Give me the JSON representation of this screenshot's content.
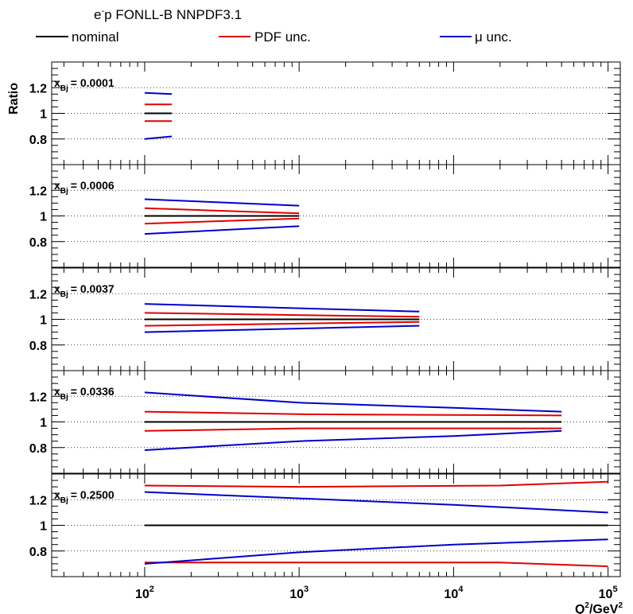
{
  "header": {
    "title_main": "e",
    "title_sup": "-",
    "title_rest": "p FONLL-B NNPDF3.1"
  },
  "legend": {
    "placement": "top",
    "items": [
      {
        "label": "nominal",
        "color": "#000000"
      },
      {
        "label": "PDF unc.",
        "color": "#e00000"
      },
      {
        "label": "μ unc.",
        "color": "#0000cc"
      }
    ]
  },
  "axes": {
    "ylabel": "Ratio",
    "xlabel_main": "Q",
    "xlabel_sup": "2",
    "xlabel_mid": "/GeV",
    "xlabel_sup2": "2",
    "xscale": "log",
    "xlim": [
      25,
      120000
    ],
    "xticks": [
      {
        "base": "10",
        "exp": "2",
        "value": 100
      },
      {
        "base": "10",
        "exp": "3",
        "value": 1000
      },
      {
        "base": "10",
        "exp": "4",
        "value": 10000
      },
      {
        "base": "10",
        "exp": "5",
        "value": 100000
      }
    ],
    "ylim": [
      0.6,
      1.4
    ],
    "yticks": [
      {
        "label": "0.8",
        "value": 0.8
      },
      {
        "label": "1",
        "value": 1.0
      },
      {
        "label": "1.2",
        "value": 1.2
      }
    ],
    "grid": "horizontal dotted at 0.8, 1.0, 1.2"
  },
  "chart_data": {
    "type": "line",
    "panels": [
      {
        "label_x": "x",
        "label_sub": "Bj",
        "label_value": "= 0.0001",
        "series": [
          {
            "name": "nominal",
            "color": "#000000",
            "x": [
              100,
              150
            ],
            "y": [
              1.0,
              1.0
            ]
          },
          {
            "name": "PDF unc.",
            "color": "#e00000",
            "x": [
              100,
              150
            ],
            "y": [
              1.07,
              1.07
            ]
          },
          {
            "name": "PDF unc.",
            "color": "#e00000",
            "x": [
              100,
              150
            ],
            "y": [
              0.94,
              0.94
            ]
          },
          {
            "name": "μ unc.",
            "color": "#0000cc",
            "x": [
              100,
              150
            ],
            "y": [
              1.16,
              1.15
            ]
          },
          {
            "name": "μ unc.",
            "color": "#0000cc",
            "x": [
              100,
              150
            ],
            "y": [
              0.8,
              0.82
            ]
          }
        ]
      },
      {
        "label_x": "x",
        "label_sub": "Bj",
        "label_value": "= 0.0006",
        "series": [
          {
            "name": "nominal",
            "color": "#000000",
            "x": [
              100,
              1000
            ],
            "y": [
              1.0,
              1.0
            ]
          },
          {
            "name": "PDF unc.",
            "color": "#e00000",
            "x": [
              100,
              1000
            ],
            "y": [
              1.06,
              1.02
            ]
          },
          {
            "name": "PDF unc.",
            "color": "#e00000",
            "x": [
              100,
              1000
            ],
            "y": [
              0.94,
              0.98
            ]
          },
          {
            "name": "μ unc.",
            "color": "#0000cc",
            "x": [
              100,
              1000
            ],
            "y": [
              1.13,
              1.08
            ]
          },
          {
            "name": "μ unc.",
            "color": "#0000cc",
            "x": [
              100,
              1000
            ],
            "y": [
              0.86,
              0.92
            ]
          }
        ]
      },
      {
        "label_x": "x",
        "label_sub": "Bj",
        "label_value": "= 0.0037",
        "series": [
          {
            "name": "nominal",
            "color": "#000000",
            "x": [
              100,
              6000
            ],
            "y": [
              1.0,
              1.0
            ]
          },
          {
            "name": "PDF unc.",
            "color": "#e00000",
            "x": [
              100,
              6000
            ],
            "y": [
              1.05,
              1.02
            ]
          },
          {
            "name": "PDF unc.",
            "color": "#e00000",
            "x": [
              100,
              6000
            ],
            "y": [
              0.95,
              0.98
            ]
          },
          {
            "name": "μ unc.",
            "color": "#0000cc",
            "x": [
              100,
              6000
            ],
            "y": [
              1.12,
              1.06
            ]
          },
          {
            "name": "μ unc.",
            "color": "#0000cc",
            "x": [
              100,
              6000
            ],
            "y": [
              0.9,
              0.95
            ]
          }
        ]
      },
      {
        "label_x": "x",
        "label_sub": "Bj",
        "label_value": "= 0.0336",
        "series": [
          {
            "name": "nominal",
            "color": "#000000",
            "x": [
              100,
              50000
            ],
            "y": [
              1.0,
              1.0
            ]
          },
          {
            "name": "PDF unc.",
            "color": "#e00000",
            "x": [
              100,
              1000,
              50000
            ],
            "y": [
              1.08,
              1.06,
              1.05
            ]
          },
          {
            "name": "PDF unc.",
            "color": "#e00000",
            "x": [
              100,
              1000,
              50000
            ],
            "y": [
              0.93,
              0.95,
              0.95
            ]
          },
          {
            "name": "μ unc.",
            "color": "#0000cc",
            "x": [
              100,
              1000,
              10000,
              50000
            ],
            "y": [
              1.23,
              1.15,
              1.11,
              1.08
            ]
          },
          {
            "name": "μ unc.",
            "color": "#0000cc",
            "x": [
              100,
              1000,
              10000,
              50000
            ],
            "y": [
              0.78,
              0.85,
              0.89,
              0.93
            ]
          }
        ]
      },
      {
        "label_x": "x",
        "label_sub": "Bj",
        "label_value": "= 0.2500",
        "series": [
          {
            "name": "nominal",
            "color": "#000000",
            "x": [
              100,
              100000
            ],
            "y": [
              1.0,
              1.0
            ]
          },
          {
            "name": "PDF unc.",
            "color": "#e00000",
            "x": [
              100,
              1000,
              20000,
              100000
            ],
            "y": [
              1.31,
              1.3,
              1.31,
              1.34
            ]
          },
          {
            "name": "PDF unc.",
            "color": "#e00000",
            "x": [
              100,
              1000,
              20000,
              100000
            ],
            "y": [
              0.71,
              0.71,
              0.71,
              0.68
            ]
          },
          {
            "name": "μ unc.",
            "color": "#0000cc",
            "x": [
              100,
              1000,
              10000,
              100000
            ],
            "y": [
              1.26,
              1.21,
              1.16,
              1.1
            ]
          },
          {
            "name": "μ unc.",
            "color": "#0000cc",
            "x": [
              100,
              1000,
              10000,
              100000
            ],
            "y": [
              0.7,
              0.79,
              0.85,
              0.89
            ]
          }
        ]
      }
    ]
  }
}
